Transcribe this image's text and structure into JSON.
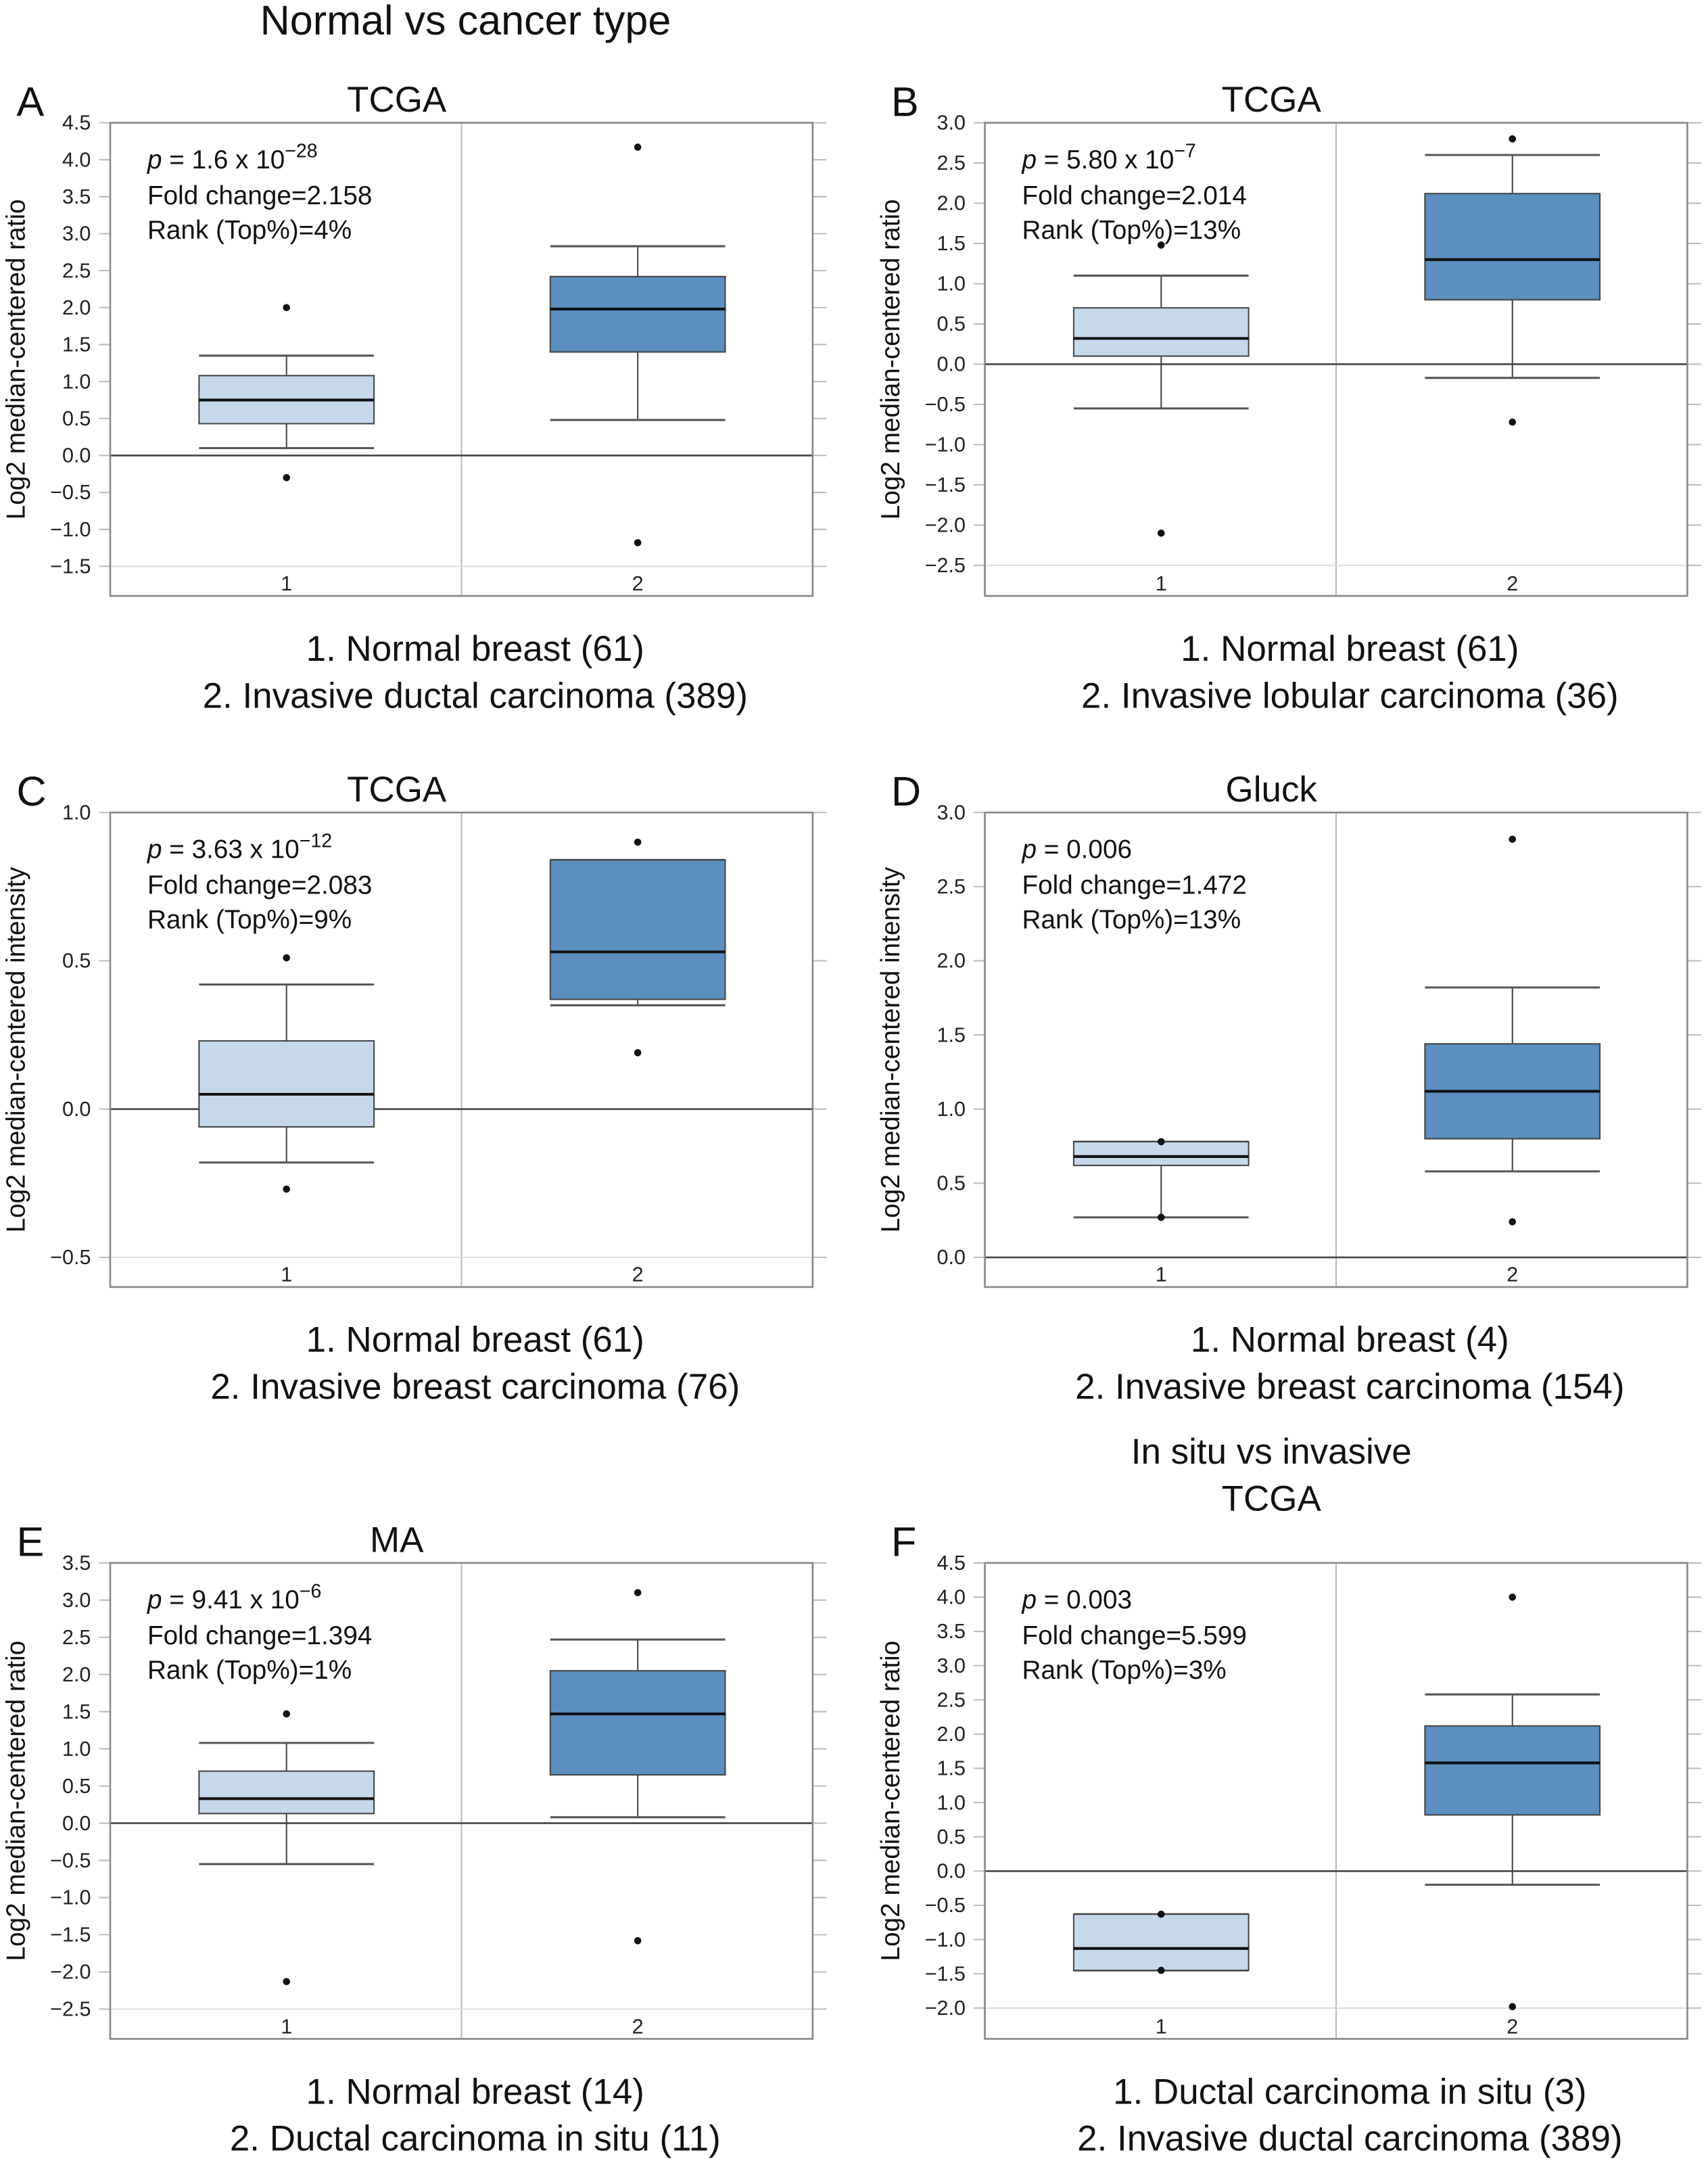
{
  "figure_title": "Normal vs cancer type",
  "colors": {
    "normal_box": "#c5d8ec",
    "cancer_box": "#5a8fbf",
    "frame": "#888888",
    "median": "#111111"
  },
  "chart_data": [
    {
      "type": "box",
      "panel": "A",
      "title": [
        "TCGA"
      ],
      "ylabel": "Log2 median-centered ratio",
      "ylim": [
        -1.9,
        4.5
      ],
      "yticks": [
        -1.5,
        -1.0,
        -0.5,
        0.0,
        0.5,
        1.0,
        1.5,
        2.0,
        2.5,
        3.0,
        3.5,
        4.0,
        4.5
      ],
      "categories": [
        "1",
        "2"
      ],
      "stats": {
        "p_prefix": "p",
        "p_value": " = 1.6 x 10",
        "p_exponent": "−28",
        "fold_change": "Fold change=2.158",
        "rank": "Rank (Top%)=4%"
      },
      "legend": [
        "1. Normal breast (61)",
        "2. Invasive ductal carcinoma (389)"
      ],
      "groups": [
        {
          "whisker_low": 0.1,
          "q1": 0.43,
          "median": 0.75,
          "q3": 1.08,
          "whisker_high": 1.35,
          "outliers": [
            2.0,
            -0.3
          ]
        },
        {
          "whisker_low": 0.48,
          "q1": 1.4,
          "median": 1.98,
          "q3": 2.42,
          "whisker_high": 2.83,
          "outliers": [
            4.17,
            -1.18
          ]
        }
      ]
    },
    {
      "type": "box",
      "panel": "B",
      "title": [
        "TCGA"
      ],
      "ylabel": "Log2 median-centered ratio",
      "ylim": [
        -2.88,
        3.0
      ],
      "yticks": [
        -2.5,
        -2.0,
        -1.5,
        -1.0,
        -0.5,
        0.0,
        0.5,
        1.0,
        1.5,
        2.0,
        2.5,
        3.0
      ],
      "categories": [
        "1",
        "2"
      ],
      "stats": {
        "p_prefix": "p",
        "p_value": " = 5.80 x 10",
        "p_exponent": "−7",
        "fold_change": "Fold change=2.014",
        "rank": "Rank (Top%)=13%"
      },
      "legend": [
        "1. Normal breast (61)",
        "2. Invasive lobular carcinoma (36)"
      ],
      "groups": [
        {
          "whisker_low": -0.55,
          "q1": 0.1,
          "median": 0.32,
          "q3": 0.7,
          "whisker_high": 1.1,
          "outliers": [
            1.48,
            -2.1
          ]
        },
        {
          "whisker_low": -0.17,
          "q1": 0.8,
          "median": 1.3,
          "q3": 2.12,
          "whisker_high": 2.6,
          "outliers": [
            2.8,
            -0.72
          ]
        }
      ]
    },
    {
      "type": "box",
      "panel": "C",
      "title": [
        "TCGA"
      ],
      "ylabel": "Log2 median-centered intensity",
      "ylim": [
        -0.6,
        1.0
      ],
      "yticks": [
        -0.5,
        0.0,
        0.5,
        1.0
      ],
      "categories": [
        "1",
        "2"
      ],
      "stats": {
        "p_prefix": "p",
        "p_value": " = 3.63 x 10",
        "p_exponent": "−12",
        "fold_change": "Fold change=2.083",
        "rank": "Rank (Top%)=9%"
      },
      "legend": [
        "1. Normal breast (61)",
        "2. Invasive breast carcinoma (76)"
      ],
      "groups": [
        {
          "whisker_low": -0.18,
          "q1": -0.06,
          "median": 0.05,
          "q3": 0.23,
          "whisker_high": 0.42,
          "outliers": [
            0.51,
            -0.27
          ]
        },
        {
          "whisker_low": 0.35,
          "q1": 0.37,
          "median": 0.53,
          "q3": 0.84,
          "whisker_high": 0.84,
          "outliers": [
            0.9,
            0.19
          ]
        }
      ]
    },
    {
      "type": "box",
      "panel": "D",
      "title": [
        "Gluck"
      ],
      "ylabel": "Log2 median-centered intensity",
      "ylim": [
        -0.2,
        3.0
      ],
      "yticks": [
        0.0,
        0.5,
        1.0,
        1.5,
        2.0,
        2.5,
        3.0
      ],
      "categories": [
        "1",
        "2"
      ],
      "stats": {
        "p_prefix": "p",
        "p_value": " = 0.006",
        "p_exponent": "",
        "fold_change": "Fold change=1.472",
        "rank": "Rank (Top%)=13%"
      },
      "legend": [
        "1. Normal breast (4)",
        "2. Invasive breast carcinoma (154)"
      ],
      "groups": [
        {
          "whisker_low": 0.27,
          "q1": 0.62,
          "median": 0.68,
          "q3": 0.78,
          "whisker_high": 0.78,
          "outliers": [
            0.78,
            0.27
          ]
        },
        {
          "whisker_low": 0.58,
          "q1": 0.8,
          "median": 1.12,
          "q3": 1.44,
          "whisker_high": 1.82,
          "outliers": [
            2.82,
            0.24
          ]
        }
      ]
    },
    {
      "type": "box",
      "panel": "E",
      "title": [
        "MA"
      ],
      "ylabel": "Log2 median-centered ratio",
      "ylim": [
        -2.9,
        3.5
      ],
      "yticks": [
        -2.5,
        -2.0,
        -1.5,
        -1.0,
        -0.5,
        0.0,
        0.5,
        1.0,
        1.5,
        2.0,
        2.5,
        3.0,
        3.5
      ],
      "categories": [
        "1",
        "2"
      ],
      "stats": {
        "p_prefix": "p",
        "p_value": " = 9.41 x 10",
        "p_exponent": "−6",
        "fold_change": "Fold change=1.394",
        "rank": "Rank (Top%)=1%"
      },
      "legend": [
        "1. Normal breast (14)",
        "2. Ductal carcinoma in situ (11)"
      ],
      "groups": [
        {
          "whisker_low": -0.55,
          "q1": 0.13,
          "median": 0.33,
          "q3": 0.7,
          "whisker_high": 1.08,
          "outliers": [
            1.47,
            -2.13
          ]
        },
        {
          "whisker_low": 0.08,
          "q1": 0.65,
          "median": 1.47,
          "q3": 2.05,
          "whisker_high": 2.47,
          "outliers": [
            3.1,
            -1.58
          ]
        }
      ]
    },
    {
      "type": "box",
      "panel": "F",
      "title": [
        "In situ vs invasive",
        "TCGA"
      ],
      "ylabel": "Log2 median-centered ratio",
      "ylim": [
        -2.45,
        4.5
      ],
      "yticks": [
        -2.0,
        -1.5,
        -1.0,
        -0.5,
        0.0,
        0.5,
        1.0,
        1.5,
        2.0,
        2.5,
        3.0,
        3.5,
        4.0,
        4.5
      ],
      "categories": [
        "1",
        "2"
      ],
      "stats": {
        "p_prefix": "p",
        "p_value": " = 0.003",
        "p_exponent": "",
        "fold_change": "Fold change=5.599",
        "rank": "Rank (Top%)=3%"
      },
      "legend": [
        "1. Ductal carcinoma in situ (3)",
        "2. Invasive ductal carcinoma (389)"
      ],
      "groups": [
        {
          "whisker_low": -1.45,
          "q1": -1.45,
          "median": -1.13,
          "q3": -0.63,
          "whisker_high": -0.63,
          "outliers": [
            -0.63,
            -1.45
          ]
        },
        {
          "whisker_low": -0.2,
          "q1": 0.82,
          "median": 1.58,
          "q3": 2.12,
          "whisker_high": 2.58,
          "outliers": [
            4.0,
            -1.98
          ]
        }
      ]
    }
  ]
}
